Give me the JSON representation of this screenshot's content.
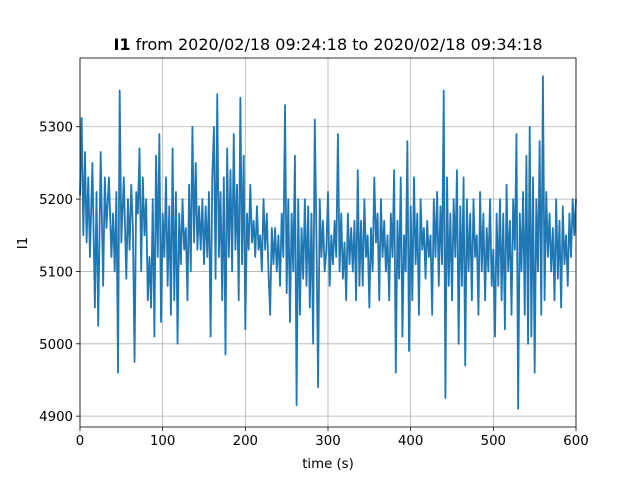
{
  "chart_data": {
    "type": "line",
    "title": {
      "bold": "I1",
      "rest": " from 2020/02/18 09:24:18 to 2020/02/18 09:34:18"
    },
    "xlabel": "time (s)",
    "ylabel": "I1",
    "xlim": [
      0,
      600
    ],
    "ylim": [
      4885,
      5395
    ],
    "xticks": [
      0,
      100,
      200,
      300,
      400,
      500,
      600
    ],
    "yticks": [
      4900,
      5000,
      5100,
      5200,
      5300
    ],
    "grid": true,
    "series": [
      {
        "color": "#1f77b4",
        "points": [
          [
            0,
            5205
          ],
          [
            2,
            5312
          ],
          [
            4,
            5150
          ],
          [
            6,
            5265
          ],
          [
            8,
            5140
          ],
          [
            10,
            5230
          ],
          [
            12,
            5120
          ],
          [
            15,
            5250
          ],
          [
            18,
            5050
          ],
          [
            20,
            5210
          ],
          [
            22,
            5025
          ],
          [
            25,
            5265
          ],
          [
            28,
            5080
          ],
          [
            30,
            5230
          ],
          [
            32,
            5160
          ],
          [
            35,
            5230
          ],
          [
            38,
            5120
          ],
          [
            40,
            5180
          ],
          [
            42,
            5100
          ],
          [
            44,
            5210
          ],
          [
            46,
            4960
          ],
          [
            48,
            5350
          ],
          [
            50,
            5140
          ],
          [
            53,
            5230
          ],
          [
            56,
            5090
          ],
          [
            58,
            5200
          ],
          [
            60,
            5130
          ],
          [
            62,
            5220
          ],
          [
            64,
            5160
          ],
          [
            66,
            4975
          ],
          [
            68,
            5210
          ],
          [
            70,
            5180
          ],
          [
            72,
            5270
          ],
          [
            74,
            5100
          ],
          [
            76,
            5230
          ],
          [
            78,
            5150
          ],
          [
            80,
            5200
          ],
          [
            82,
            5060
          ],
          [
            84,
            5120
          ],
          [
            86,
            5050
          ],
          [
            88,
            5200
          ],
          [
            90,
            5010
          ],
          [
            92,
            5260
          ],
          [
            94,
            5120
          ],
          [
            96,
            5290
          ],
          [
            98,
            5030
          ],
          [
            100,
            5180
          ],
          [
            102,
            5120
          ],
          [
            104,
            5230
          ],
          [
            106,
            5080
          ],
          [
            108,
            5190
          ],
          [
            110,
            5040
          ],
          [
            112,
            5270
          ],
          [
            114,
            5060
          ],
          [
            116,
            5210
          ],
          [
            118,
            5000
          ],
          [
            120,
            5180
          ],
          [
            122,
            5110
          ],
          [
            124,
            5200
          ],
          [
            126,
            5130
          ],
          [
            128,
            5160
          ],
          [
            130,
            5060
          ],
          [
            132,
            5220
          ],
          [
            134,
            5100
          ],
          [
            136,
            5300
          ],
          [
            138,
            5140
          ],
          [
            140,
            5250
          ],
          [
            142,
            5130
          ],
          [
            144,
            5190
          ],
          [
            146,
            5130
          ],
          [
            148,
            5200
          ],
          [
            150,
            5110
          ],
          [
            152,
            5190
          ],
          [
            154,
            5120
          ],
          [
            156,
            5210
          ],
          [
            158,
            5010
          ],
          [
            160,
            5230
          ],
          [
            162,
            5300
          ],
          [
            164,
            5090
          ],
          [
            166,
            5345
          ],
          [
            168,
            5120
          ],
          [
            170,
            5210
          ],
          [
            172,
            5060
          ],
          [
            174,
            5230
          ],
          [
            176,
            4985
          ],
          [
            178,
            5270
          ],
          [
            180,
            5120
          ],
          [
            182,
            5240
          ],
          [
            184,
            5100
          ],
          [
            186,
            5290
          ],
          [
            188,
            5130
          ],
          [
            190,
            5220
          ],
          [
            192,
            5060
          ],
          [
            194,
            5340
          ],
          [
            196,
            5110
          ],
          [
            198,
            5260
          ],
          [
            200,
            5020
          ],
          [
            202,
            5180
          ],
          [
            204,
            5130
          ],
          [
            206,
            5220
          ],
          [
            208,
            5140
          ],
          [
            210,
            5170
          ],
          [
            212,
            5120
          ],
          [
            214,
            5190
          ],
          [
            216,
            5130
          ],
          [
            218,
            5150
          ],
          [
            220,
            5100
          ],
          [
            222,
            5200
          ],
          [
            224,
            5130
          ],
          [
            226,
            5180
          ],
          [
            228,
            5100
          ],
          [
            230,
            5040
          ],
          [
            232,
            5160
          ],
          [
            234,
            5110
          ],
          [
            236,
            5160
          ],
          [
            238,
            5100
          ],
          [
            240,
            5150
          ],
          [
            242,
            5080
          ],
          [
            244,
            5180
          ],
          [
            246,
            5120
          ],
          [
            248,
            5330
          ],
          [
            250,
            5070
          ],
          [
            252,
            5200
          ],
          [
            254,
            5030
          ],
          [
            256,
            5180
          ],
          [
            258,
            5100
          ],
          [
            260,
            5260
          ],
          [
            262,
            4915
          ],
          [
            264,
            5200
          ],
          [
            266,
            5040
          ],
          [
            268,
            5160
          ],
          [
            270,
            5090
          ],
          [
            272,
            5200
          ],
          [
            274,
            5080
          ],
          [
            276,
            5190
          ],
          [
            278,
            5050
          ],
          [
            280,
            5180
          ],
          [
            282,
            5000
          ],
          [
            284,
            5310
          ],
          [
            286,
            5150
          ],
          [
            288,
            4940
          ],
          [
            290,
            5200
          ],
          [
            292,
            5120
          ],
          [
            294,
            5170
          ],
          [
            296,
            5100
          ],
          [
            298,
            5130
          ],
          [
            300,
            5210
          ],
          [
            302,
            5080
          ],
          [
            304,
            5150
          ],
          [
            306,
            5110
          ],
          [
            308,
            5170
          ],
          [
            310,
            5120
          ],
          [
            312,
            5290
          ],
          [
            314,
            5100
          ],
          [
            316,
            5180
          ],
          [
            318,
            5090
          ],
          [
            320,
            5140
          ],
          [
            322,
            5060
          ],
          [
            324,
            5180
          ],
          [
            326,
            5110
          ],
          [
            328,
            5160
          ],
          [
            330,
            5100
          ],
          [
            332,
            5170
          ],
          [
            334,
            5060
          ],
          [
            336,
            5240
          ],
          [
            338,
            5080
          ],
          [
            340,
            5170
          ],
          [
            342,
            5080
          ],
          [
            344,
            5200
          ],
          [
            346,
            5120
          ],
          [
            348,
            5150
          ],
          [
            350,
            5050
          ],
          [
            352,
            5160
          ],
          [
            354,
            5100
          ],
          [
            356,
            5230
          ],
          [
            358,
            5140
          ],
          [
            360,
            5180
          ],
          [
            362,
            5060
          ],
          [
            364,
            5200
          ],
          [
            366,
            5120
          ],
          [
            368,
            5170
          ],
          [
            370,
            5100
          ],
          [
            372,
            5150
          ],
          [
            374,
            5060
          ],
          [
            376,
            5180
          ],
          [
            378,
            5120
          ],
          [
            380,
            5240
          ],
          [
            382,
            4960
          ],
          [
            384,
            5170
          ],
          [
            386,
            5090
          ],
          [
            388,
            5230
          ],
          [
            390,
            5010
          ],
          [
            392,
            5150
          ],
          [
            394,
            5100
          ],
          [
            396,
            5280
          ],
          [
            398,
            4990
          ],
          [
            400,
            5190
          ],
          [
            402,
            5060
          ],
          [
            404,
            5230
          ],
          [
            406,
            5110
          ],
          [
            408,
            5180
          ],
          [
            410,
            5040
          ],
          [
            412,
            5200
          ],
          [
            414,
            5130
          ],
          [
            416,
            5160
          ],
          [
            418,
            5090
          ],
          [
            420,
            5170
          ],
          [
            422,
            5120
          ],
          [
            424,
            5150
          ],
          [
            426,
            5040
          ],
          [
            428,
            5200
          ],
          [
            430,
            5120
          ],
          [
            432,
            5210
          ],
          [
            434,
            5080
          ],
          [
            436,
            5190
          ],
          [
            438,
            5110
          ],
          [
            440,
            5350
          ],
          [
            442,
            4925
          ],
          [
            444,
            5230
          ],
          [
            446,
            5080
          ],
          [
            448,
            5180
          ],
          [
            450,
            5060
          ],
          [
            452,
            5200
          ],
          [
            454,
            5120
          ],
          [
            456,
            5240
          ],
          [
            458,
            5000
          ],
          [
            460,
            5190
          ],
          [
            462,
            5080
          ],
          [
            464,
            5230
          ],
          [
            466,
            4970
          ],
          [
            468,
            5200
          ],
          [
            470,
            5100
          ],
          [
            472,
            5180
          ],
          [
            474,
            5060
          ],
          [
            476,
            5200
          ],
          [
            478,
            5120
          ],
          [
            480,
            5150
          ],
          [
            482,
            5040
          ],
          [
            484,
            5210
          ],
          [
            486,
            5100
          ],
          [
            488,
            5180
          ],
          [
            490,
            5060
          ],
          [
            492,
            5160
          ],
          [
            494,
            5100
          ],
          [
            496,
            5200
          ],
          [
            498,
            5080
          ],
          [
            500,
            5130
          ],
          [
            502,
            5010
          ],
          [
            504,
            5180
          ],
          [
            506,
            5080
          ],
          [
            508,
            5200
          ],
          [
            510,
            5060
          ],
          [
            512,
            5180
          ],
          [
            514,
            5020
          ],
          [
            516,
            5220
          ],
          [
            518,
            5100
          ],
          [
            520,
            5170
          ],
          [
            522,
            5040
          ],
          [
            524,
            5200
          ],
          [
            526,
            5130
          ],
          [
            528,
            5290
          ],
          [
            530,
            4910
          ],
          [
            532,
            5180
          ],
          [
            534,
            5100
          ],
          [
            536,
            5210
          ],
          [
            538,
            5040
          ],
          [
            540,
            5260
          ],
          [
            542,
            5000
          ],
          [
            544,
            5300
          ],
          [
            546,
            5010
          ],
          [
            548,
            5230
          ],
          [
            550,
            4960
          ],
          [
            552,
            5200
          ],
          [
            554,
            5100
          ],
          [
            556,
            5280
          ],
          [
            558,
            5040
          ],
          [
            560,
            5370
          ],
          [
            562,
            5060
          ],
          [
            564,
            5210
          ],
          [
            566,
            5120
          ],
          [
            568,
            5180
          ],
          [
            570,
            5100
          ],
          [
            572,
            5160
          ],
          [
            574,
            5060
          ],
          [
            576,
            5200
          ],
          [
            578,
            5090
          ],
          [
            580,
            5170
          ],
          [
            582,
            5050
          ],
          [
            584,
            5190
          ],
          [
            586,
            5110
          ],
          [
            588,
            5150
          ],
          [
            590,
            5080
          ],
          [
            592,
            5180
          ],
          [
            594,
            5120
          ],
          [
            596,
            5200
          ],
          [
            598,
            5150
          ],
          [
            600,
            5200
          ]
        ]
      }
    ]
  }
}
